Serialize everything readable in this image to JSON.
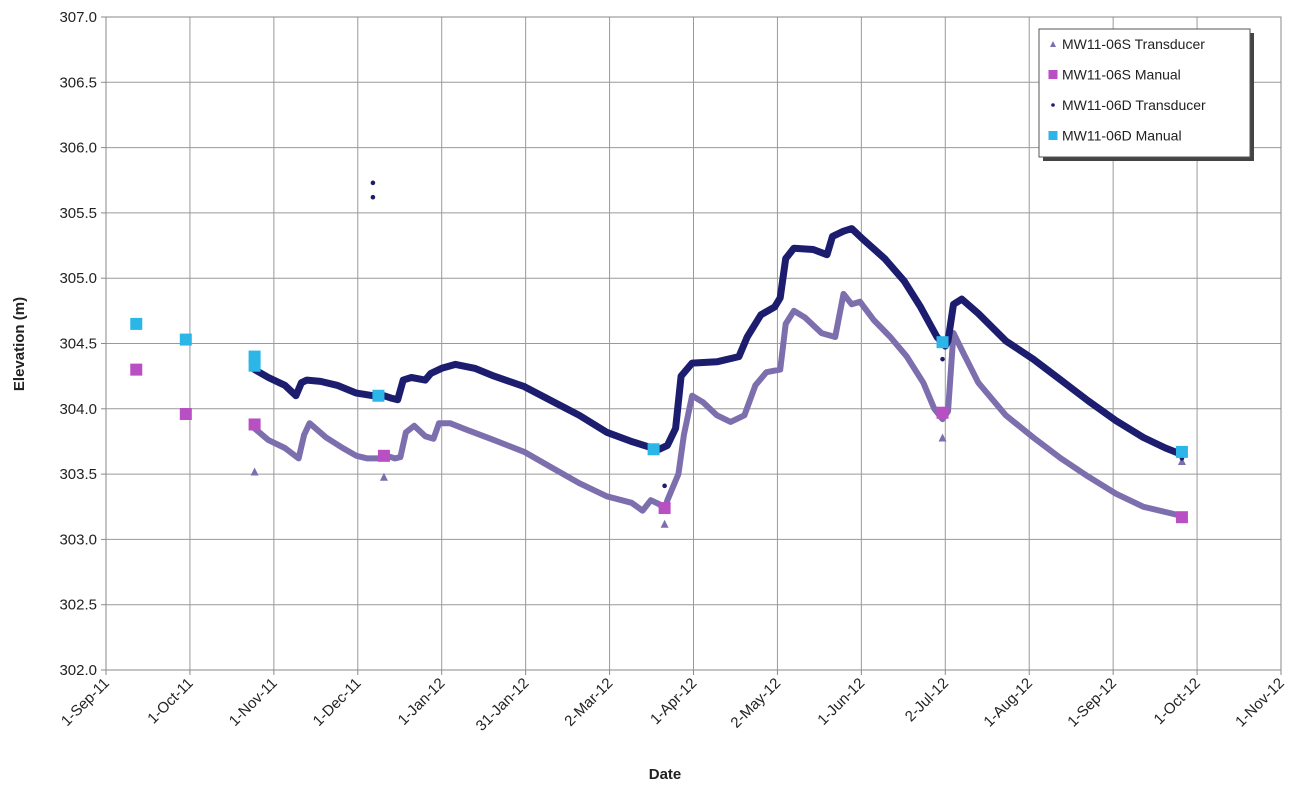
{
  "chart_data": {
    "type": "scatter",
    "title": "",
    "xlabel": "Date",
    "ylabel": "Elevation (m)",
    "ylim": [
      302.0,
      307.0
    ],
    "xlim": [
      "2011-09-01",
      "2012-11-01"
    ],
    "grid": true,
    "legend_position": "top-right",
    "x_tick_labels": [
      "1-Sep-11",
      "1-Oct-11",
      "1-Nov-11",
      "1-Dec-11",
      "1-Jan-12",
      "31-Jan-12",
      "2-Mar-12",
      "1-Apr-12",
      "2-May-12",
      "1-Jun-12",
      "2-Jul-12",
      "1-Aug-12",
      "1-Sep-12",
      "1-Oct-12",
      "1-Nov-12"
    ],
    "y_tick_labels": [
      "302.0",
      "302.5",
      "303.0",
      "303.5",
      "304.0",
      "304.5",
      "305.0",
      "305.5",
      "306.0",
      "306.5",
      "307.0"
    ],
    "series": [
      {
        "name": "MW11-06S Transducer",
        "marker": "triangle",
        "color": "#7d6fae",
        "continuous": [
          [
            "2011-10-25",
            303.85
          ],
          [
            "2011-10-30",
            303.76
          ],
          [
            "2011-11-05",
            303.7
          ],
          [
            "2011-11-10",
            303.62
          ],
          [
            "2011-11-12",
            303.8
          ],
          [
            "2011-11-14",
            303.89
          ],
          [
            "2011-11-20",
            303.78
          ],
          [
            "2011-11-26",
            303.7
          ],
          [
            "2011-12-01",
            303.64
          ],
          [
            "2011-12-05",
            303.62
          ],
          [
            "2011-12-09",
            303.62
          ],
          [
            "2011-12-12",
            303.64
          ],
          [
            "2011-12-15",
            303.62
          ],
          [
            "2011-12-17",
            303.63
          ],
          [
            "2011-12-19",
            303.82
          ],
          [
            "2011-12-22",
            303.87
          ],
          [
            "2011-12-26",
            303.79
          ],
          [
            "2011-12-29",
            303.77
          ],
          [
            "2011-12-31",
            303.89
          ],
          [
            "2012-01-04",
            303.89
          ],
          [
            "2012-01-10",
            303.84
          ],
          [
            "2012-01-20",
            303.76
          ],
          [
            "2012-01-31",
            303.67
          ],
          [
            "2012-02-10",
            303.55
          ],
          [
            "2012-02-20",
            303.43
          ],
          [
            "2012-03-01",
            303.33
          ],
          [
            "2012-03-10",
            303.28
          ],
          [
            "2012-03-14",
            303.22
          ],
          [
            "2012-03-17",
            303.3
          ],
          [
            "2012-03-20",
            303.27
          ],
          [
            "2012-03-22",
            303.23
          ],
          [
            "2012-03-23",
            303.3
          ],
          [
            "2012-03-27",
            303.5
          ],
          [
            "2012-03-29",
            303.8
          ],
          [
            "2012-04-01",
            304.1
          ],
          [
            "2012-04-05",
            304.05
          ],
          [
            "2012-04-10",
            303.95
          ],
          [
            "2012-04-15",
            303.9
          ],
          [
            "2012-04-20",
            303.95
          ],
          [
            "2012-04-24",
            304.18
          ],
          [
            "2012-04-28",
            304.28
          ],
          [
            "2012-05-03",
            304.3
          ],
          [
            "2012-05-05",
            304.65
          ],
          [
            "2012-05-08",
            304.75
          ],
          [
            "2012-05-12",
            304.7
          ],
          [
            "2012-05-18",
            304.58
          ],
          [
            "2012-05-23",
            304.55
          ],
          [
            "2012-05-26",
            304.88
          ],
          [
            "2012-05-29",
            304.8
          ],
          [
            "2012-06-01",
            304.82
          ],
          [
            "2012-06-06",
            304.68
          ],
          [
            "2012-06-12",
            304.55
          ],
          [
            "2012-06-18",
            304.4
          ],
          [
            "2012-06-24",
            304.2
          ],
          [
            "2012-06-28",
            304.0
          ],
          [
            "2012-07-01",
            303.92
          ],
          [
            "2012-07-03",
            303.98
          ],
          [
            "2012-07-05",
            304.58
          ],
          [
            "2012-07-08",
            304.45
          ],
          [
            "2012-07-14",
            304.2
          ],
          [
            "2012-07-24",
            303.95
          ],
          [
            "2012-08-03",
            303.78
          ],
          [
            "2012-08-13",
            303.62
          ],
          [
            "2012-08-23",
            303.48
          ],
          [
            "2012-09-02",
            303.35
          ],
          [
            "2012-09-12",
            303.25
          ],
          [
            "2012-09-20",
            303.21
          ],
          [
            "2012-09-26",
            303.18
          ]
        ],
        "points": [
          [
            "2011-10-25",
            303.52
          ],
          [
            "2011-12-11",
            303.48
          ],
          [
            "2012-03-22",
            303.12
          ],
          [
            "2012-07-01",
            303.78
          ],
          [
            "2012-09-26",
            303.6
          ]
        ]
      },
      {
        "name": "MW11-06S Manual",
        "marker": "square",
        "color": "#b84fc2",
        "points": [
          [
            "2011-09-12",
            304.3
          ],
          [
            "2011-09-30",
            303.96
          ],
          [
            "2011-10-25",
            303.88
          ],
          [
            "2011-12-11",
            303.64
          ],
          [
            "2012-03-22",
            303.24
          ],
          [
            "2012-07-01",
            303.97
          ],
          [
            "2012-09-26",
            303.17
          ]
        ]
      },
      {
        "name": "MW11-06D Transducer",
        "marker": "dot",
        "color": "#1c1d6e",
        "continuous": [
          [
            "2011-10-25",
            304.3
          ],
          [
            "2011-10-30",
            304.24
          ],
          [
            "2011-11-05",
            304.18
          ],
          [
            "2011-11-09",
            304.1
          ],
          [
            "2011-11-11",
            304.2
          ],
          [
            "2011-11-13",
            304.22
          ],
          [
            "2011-11-18",
            304.21
          ],
          [
            "2011-11-24",
            304.18
          ],
          [
            "2011-12-01",
            304.12
          ],
          [
            "2011-12-07",
            304.1
          ],
          [
            "2011-12-11",
            304.1
          ],
          [
            "2011-12-14",
            304.08
          ],
          [
            "2011-12-16",
            304.07
          ],
          [
            "2011-12-18",
            304.22
          ],
          [
            "2011-12-21",
            304.24
          ],
          [
            "2011-12-26",
            304.22
          ],
          [
            "2011-12-28",
            304.27
          ],
          [
            "2012-01-01",
            304.31
          ],
          [
            "2012-01-06",
            304.34
          ],
          [
            "2012-01-13",
            304.31
          ],
          [
            "2012-01-20",
            304.25
          ],
          [
            "2012-01-31",
            304.17
          ],
          [
            "2012-02-10",
            304.06
          ],
          [
            "2012-02-20",
            303.95
          ],
          [
            "2012-03-01",
            303.82
          ],
          [
            "2012-03-10",
            303.75
          ],
          [
            "2012-03-16",
            303.71
          ],
          [
            "2012-03-20",
            303.69
          ],
          [
            "2012-03-23",
            303.72
          ],
          [
            "2012-03-26",
            303.85
          ],
          [
            "2012-03-28",
            304.25
          ],
          [
            "2012-04-01",
            304.35
          ],
          [
            "2012-04-10",
            304.36
          ],
          [
            "2012-04-18",
            304.4
          ],
          [
            "2012-04-21",
            304.55
          ],
          [
            "2012-04-26",
            304.72
          ],
          [
            "2012-05-01",
            304.78
          ],
          [
            "2012-05-03",
            304.85
          ],
          [
            "2012-05-05",
            305.15
          ],
          [
            "2012-05-08",
            305.23
          ],
          [
            "2012-05-15",
            305.22
          ],
          [
            "2012-05-20",
            305.18
          ],
          [
            "2012-05-22",
            305.32
          ],
          [
            "2012-05-26",
            305.36
          ],
          [
            "2012-05-29",
            305.38
          ],
          [
            "2012-06-02",
            305.3
          ],
          [
            "2012-06-10",
            305.15
          ],
          [
            "2012-06-17",
            304.98
          ],
          [
            "2012-06-23",
            304.78
          ],
          [
            "2012-06-29",
            304.55
          ],
          [
            "2012-07-02",
            304.48
          ],
          [
            "2012-07-03",
            304.52
          ],
          [
            "2012-07-05",
            304.8
          ],
          [
            "2012-07-08",
            304.84
          ],
          [
            "2012-07-14",
            304.73
          ],
          [
            "2012-07-24",
            304.52
          ],
          [
            "2012-08-03",
            304.38
          ],
          [
            "2012-08-13",
            304.22
          ],
          [
            "2012-08-23",
            304.06
          ],
          [
            "2012-09-02",
            303.91
          ],
          [
            "2012-09-12",
            303.78
          ],
          [
            "2012-09-20",
            303.7
          ],
          [
            "2012-09-26",
            303.65
          ]
        ],
        "points": [
          [
            "2011-12-07",
            305.73
          ],
          [
            "2011-12-07",
            305.62
          ],
          [
            "2012-03-22",
            303.41
          ],
          [
            "2012-07-01",
            304.38
          ],
          [
            "2012-09-26",
            303.62
          ]
        ]
      },
      {
        "name": "MW11-06D Manual",
        "marker": "square",
        "color": "#2cb6e8",
        "points": [
          [
            "2011-09-12",
            304.65
          ],
          [
            "2011-09-30",
            304.53
          ],
          [
            "2011-10-25",
            304.4
          ],
          [
            "2011-10-25",
            304.33
          ],
          [
            "2011-12-09",
            304.1
          ],
          [
            "2012-03-18",
            303.69
          ],
          [
            "2012-07-01",
            304.51
          ],
          [
            "2012-09-26",
            303.67
          ]
        ]
      }
    ]
  }
}
